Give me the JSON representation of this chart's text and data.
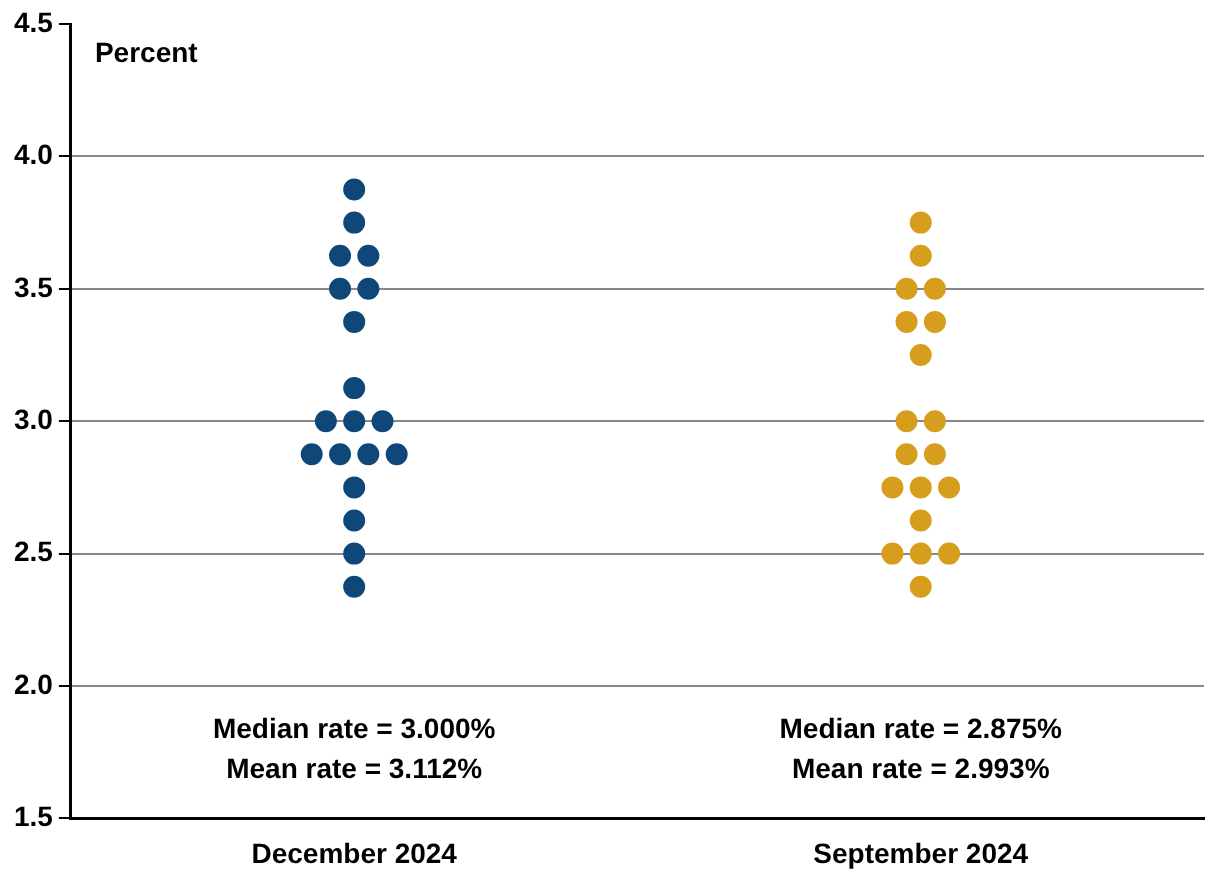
{
  "chart_data": {
    "type": "scatter",
    "ylabel": "Percent",
    "categories": [
      "December 2024",
      "September 2024"
    ],
    "series": [
      {
        "color": "#0f4778",
        "x": [
          "December 2024",
          "December 2024",
          "December 2024",
          "December 2024",
          "December 2024",
          "December 2024",
          "December 2024",
          "December 2024",
          "December 2024",
          "December 2024",
          "December 2024",
          "December 2024",
          "December 2024",
          "December 2024",
          "December 2024",
          "December 2024",
          "December 2024",
          "December 2024",
          "December 2024"
        ],
        "values": [
          3.875,
          3.75,
          3.625,
          3.625,
          3.5,
          3.5,
          3.375,
          3.125,
          3.0,
          3.0,
          3.0,
          2.875,
          2.875,
          2.875,
          2.875,
          2.75,
          2.625,
          2.5,
          2.375
        ]
      },
      {
        "color": "#d69e1c",
        "x": [
          "September 2024",
          "September 2024",
          "September 2024",
          "September 2024",
          "September 2024",
          "September 2024",
          "September 2024",
          "September 2024",
          "September 2024",
          "September 2024",
          "September 2024",
          "September 2024",
          "September 2024",
          "September 2024",
          "September 2024",
          "September 2024",
          "September 2024",
          "September 2024",
          "September 2024"
        ],
        "values": [
          3.75,
          3.625,
          3.5,
          3.5,
          3.375,
          3.375,
          3.25,
          3.0,
          3.0,
          2.875,
          2.875,
          2.75,
          2.75,
          2.75,
          2.625,
          2.5,
          2.5,
          2.5,
          2.375
        ]
      }
    ],
    "ylim": [
      1.5,
      4.5
    ],
    "yticks": [
      {
        "value": 1.5,
        "label": "1.5"
      },
      {
        "value": 2,
        "label": "2.0"
      },
      {
        "value": 2.5,
        "label": "2.5"
      },
      {
        "value": 3,
        "label": "3.0"
      },
      {
        "value": 3.5,
        "label": "3.5"
      },
      {
        "value": 4,
        "label": "4.0"
      },
      {
        "value": 4.5,
        "label": "4.5"
      }
    ],
    "grid": "y",
    "legend": false,
    "marker": "circle",
    "annotations": [
      "Median rate = 3.000%",
      "Mean rate = 3.112%",
      "Median rate = 2.875%",
      "Mean rate = 2.993%"
    ]
  }
}
